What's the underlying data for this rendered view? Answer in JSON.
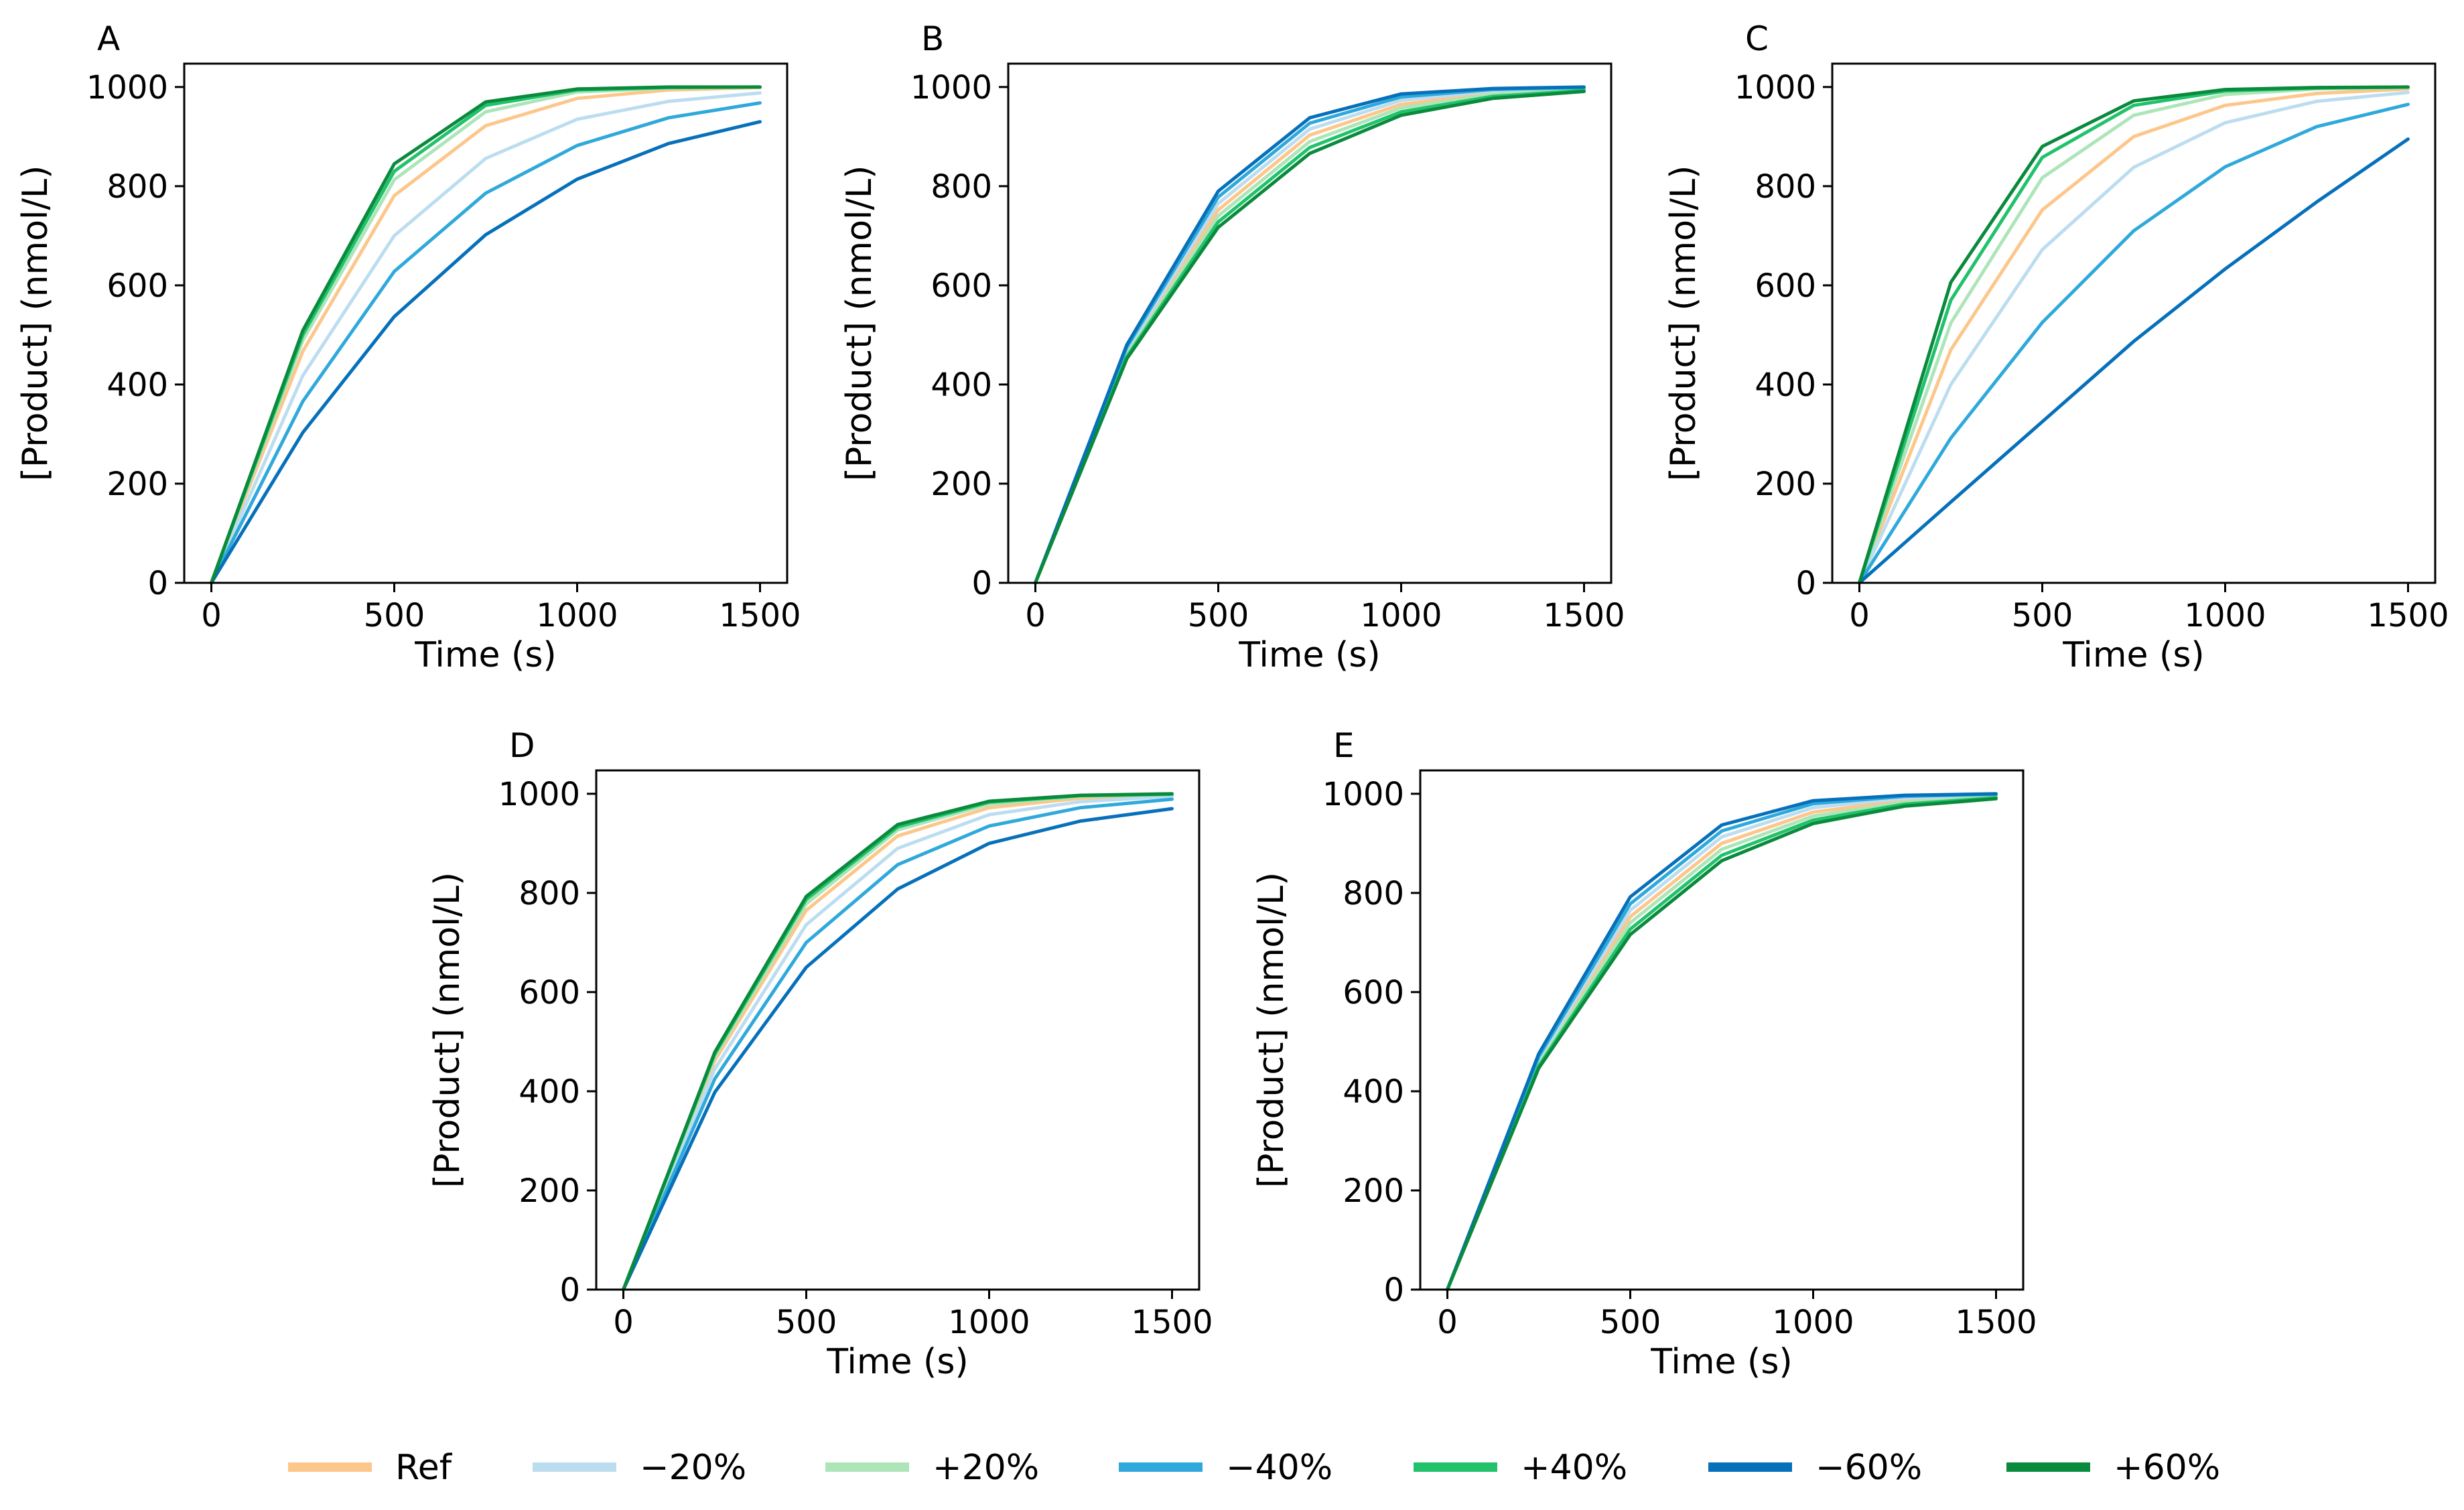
{
  "series_styles": [
    {
      "name": "Ref",
      "color": "#FDC68A"
    },
    {
      "name": "−20%",
      "color": "#BCDDF0"
    },
    {
      "name": "+20%",
      "color": "#ADE5B9"
    },
    {
      "name": "−40%",
      "color": "#2FA9DB"
    },
    {
      "name": "+40%",
      "color": "#21C26B"
    },
    {
      "name": "−60%",
      "color": "#0670BA"
    },
    {
      "name": "+60%",
      "color": "#0A8A3C"
    }
  ],
  "chart_data": [
    {
      "type": "line",
      "panel": "A",
      "xlabel": "Time (s)",
      "ylabel": "[Product] (nmol/L)",
      "xlim": [
        0,
        1500
      ],
      "ylim": [
        0,
        1000
      ],
      "xticks": [
        "0",
        "500",
        "1000",
        "1500"
      ],
      "yticks": [
        "0",
        "200",
        "400",
        "600",
        "800",
        "1000"
      ],
      "x": [
        0,
        250,
        500,
        750,
        1000,
        1250,
        1500
      ],
      "series": [
        {
          "name": "Ref",
          "values": [
            0,
            467,
            781,
            922,
            977,
            994,
            999
          ]
        },
        {
          "name": "−20%",
          "values": [
            0,
            418,
            700,
            856,
            935,
            971,
            988
          ]
        },
        {
          "name": "+20%",
          "values": [
            0,
            489,
            813,
            950,
            990,
            998,
            1000
          ]
        },
        {
          "name": "−40%",
          "values": [
            0,
            366,
            628,
            786,
            882,
            938,
            968
          ]
        },
        {
          "name": "+40%",
          "values": [
            0,
            500,
            830,
            963,
            994,
            999,
            1000
          ]
        },
        {
          "name": "−60%",
          "values": [
            0,
            303,
            537,
            702,
            814,
            886,
            930
          ]
        },
        {
          "name": "+60%",
          "values": [
            0,
            509,
            845,
            970,
            996,
            1000,
            1000
          ]
        }
      ]
    },
    {
      "type": "line",
      "panel": "B",
      "xlabel": "Time (s)",
      "ylabel": "[Product] (nmol/L)",
      "xlim": [
        0,
        1500
      ],
      "ylim": [
        0,
        1000
      ],
      "xticks": [
        "0",
        "500",
        "1000",
        "1500"
      ],
      "yticks": [
        "0",
        "200",
        "400",
        "600",
        "800",
        "1000"
      ],
      "x": [
        0,
        250,
        500,
        750,
        1000,
        1250,
        1500
      ],
      "series": [
        {
          "name": "Ref",
          "values": [
            0,
            465,
            752,
            903,
            965,
            988,
            996
          ]
        },
        {
          "name": "−20%",
          "values": [
            0,
            470,
            765,
            915,
            973,
            992,
            998
          ]
        },
        {
          "name": "+20%",
          "values": [
            0,
            460,
            740,
            890,
            958,
            985,
            995
          ]
        },
        {
          "name": "−40%",
          "values": [
            0,
            475,
            778,
            927,
            980,
            995,
            999
          ]
        },
        {
          "name": "+40%",
          "values": [
            0,
            456,
            728,
            878,
            950,
            981,
            993
          ]
        },
        {
          "name": "−60%",
          "values": [
            0,
            480,
            790,
            938,
            986,
            997,
            1000
          ]
        },
        {
          "name": "+60%",
          "values": [
            0,
            452,
            717,
            866,
            943,
            977,
            991
          ]
        }
      ]
    },
    {
      "type": "line",
      "panel": "C",
      "xlabel": "Time (s)",
      "ylabel": "[Product] (nmol/L)",
      "xlim": [
        0,
        1500
      ],
      "ylim": [
        0,
        1000
      ],
      "xticks": [
        "0",
        "500",
        "1000",
        "1500"
      ],
      "yticks": [
        "0",
        "200",
        "400",
        "600",
        "800",
        "1000"
      ],
      "x": [
        0,
        250,
        500,
        750,
        1000,
        1250,
        1500
      ],
      "series": [
        {
          "name": "Ref",
          "values": [
            0,
            470,
            752,
            900,
            963,
            987,
            996
          ]
        },
        {
          "name": "−20%",
          "values": [
            0,
            400,
            672,
            838,
            928,
            971,
            989
          ]
        },
        {
          "name": "+20%",
          "values": [
            0,
            524,
            817,
            943,
            985,
            996,
            999
          ]
        },
        {
          "name": "−40%",
          "values": [
            0,
            292,
            525,
            710,
            839,
            920,
            965
          ]
        },
        {
          "name": "+40%",
          "values": [
            0,
            570,
            858,
            963,
            992,
            998,
            1000
          ]
        },
        {
          "name": "−60%",
          "values": [
            0,
            163,
            325,
            487,
            633,
            768,
            895
          ]
        },
        {
          "name": "+60%",
          "values": [
            0,
            606,
            880,
            972,
            995,
            999,
            1000
          ]
        }
      ]
    },
    {
      "type": "line",
      "panel": "D",
      "xlabel": "Time (s)",
      "ylabel": "[Product] (nmol/L)",
      "xlim": [
        0,
        1500
      ],
      "ylim": [
        0,
        1000
      ],
      "xticks": [
        "0",
        "500",
        "1000",
        "1500"
      ],
      "yticks": [
        "0",
        "200",
        "400",
        "600",
        "800",
        "1000"
      ],
      "x": [
        0,
        250,
        500,
        750,
        1000,
        1250,
        1500
      ],
      "series": [
        {
          "name": "Ref",
          "values": [
            0,
            462,
            765,
            915,
            972,
            991,
            998
          ]
        },
        {
          "name": "−20%",
          "values": [
            0,
            445,
            736,
            890,
            958,
            984,
            995
          ]
        },
        {
          "name": "+20%",
          "values": [
            0,
            470,
            778,
            927,
            979,
            995,
            999
          ]
        },
        {
          "name": "−40%",
          "values": [
            0,
            425,
            700,
            857,
            935,
            972,
            989
          ]
        },
        {
          "name": "+40%",
          "values": [
            0,
            475,
            787,
            933,
            983,
            996,
            999
          ]
        },
        {
          "name": "−60%",
          "values": [
            0,
            398,
            650,
            808,
            900,
            945,
            970
          ]
        },
        {
          "name": "+60%",
          "values": [
            0,
            479,
            793,
            938,
            985,
            997,
            1000
          ]
        }
      ]
    },
    {
      "type": "line",
      "panel": "E",
      "xlabel": "Time (s)",
      "ylabel": "[Product] (nmol/L)",
      "xlim": [
        0,
        1500
      ],
      "ylim": [
        0,
        1000
      ],
      "xticks": [
        "0",
        "500",
        "1000",
        "1500"
      ],
      "yticks": [
        "0",
        "200",
        "400",
        "600",
        "800",
        "1000"
      ],
      "x": [
        0,
        250,
        500,
        750,
        1000,
        1250,
        1500
      ],
      "series": [
        {
          "name": "Ref",
          "values": [
            0,
            460,
            752,
            900,
            963,
            987,
            996
          ]
        },
        {
          "name": "−20%",
          "values": [
            0,
            465,
            765,
            913,
            972,
            991,
            998
          ]
        },
        {
          "name": "+20%",
          "values": [
            0,
            455,
            740,
            888,
            955,
            983,
            994
          ]
        },
        {
          "name": "−40%",
          "values": [
            0,
            470,
            778,
            925,
            980,
            995,
            999
          ]
        },
        {
          "name": "+40%",
          "values": [
            0,
            451,
            727,
            876,
            947,
            979,
            992
          ]
        },
        {
          "name": "−60%",
          "values": [
            0,
            476,
            792,
            937,
            986,
            997,
            1000
          ]
        },
        {
          "name": "+60%",
          "values": [
            0,
            447,
            716,
            865,
            940,
            975,
            990
          ]
        }
      ]
    }
  ]
}
